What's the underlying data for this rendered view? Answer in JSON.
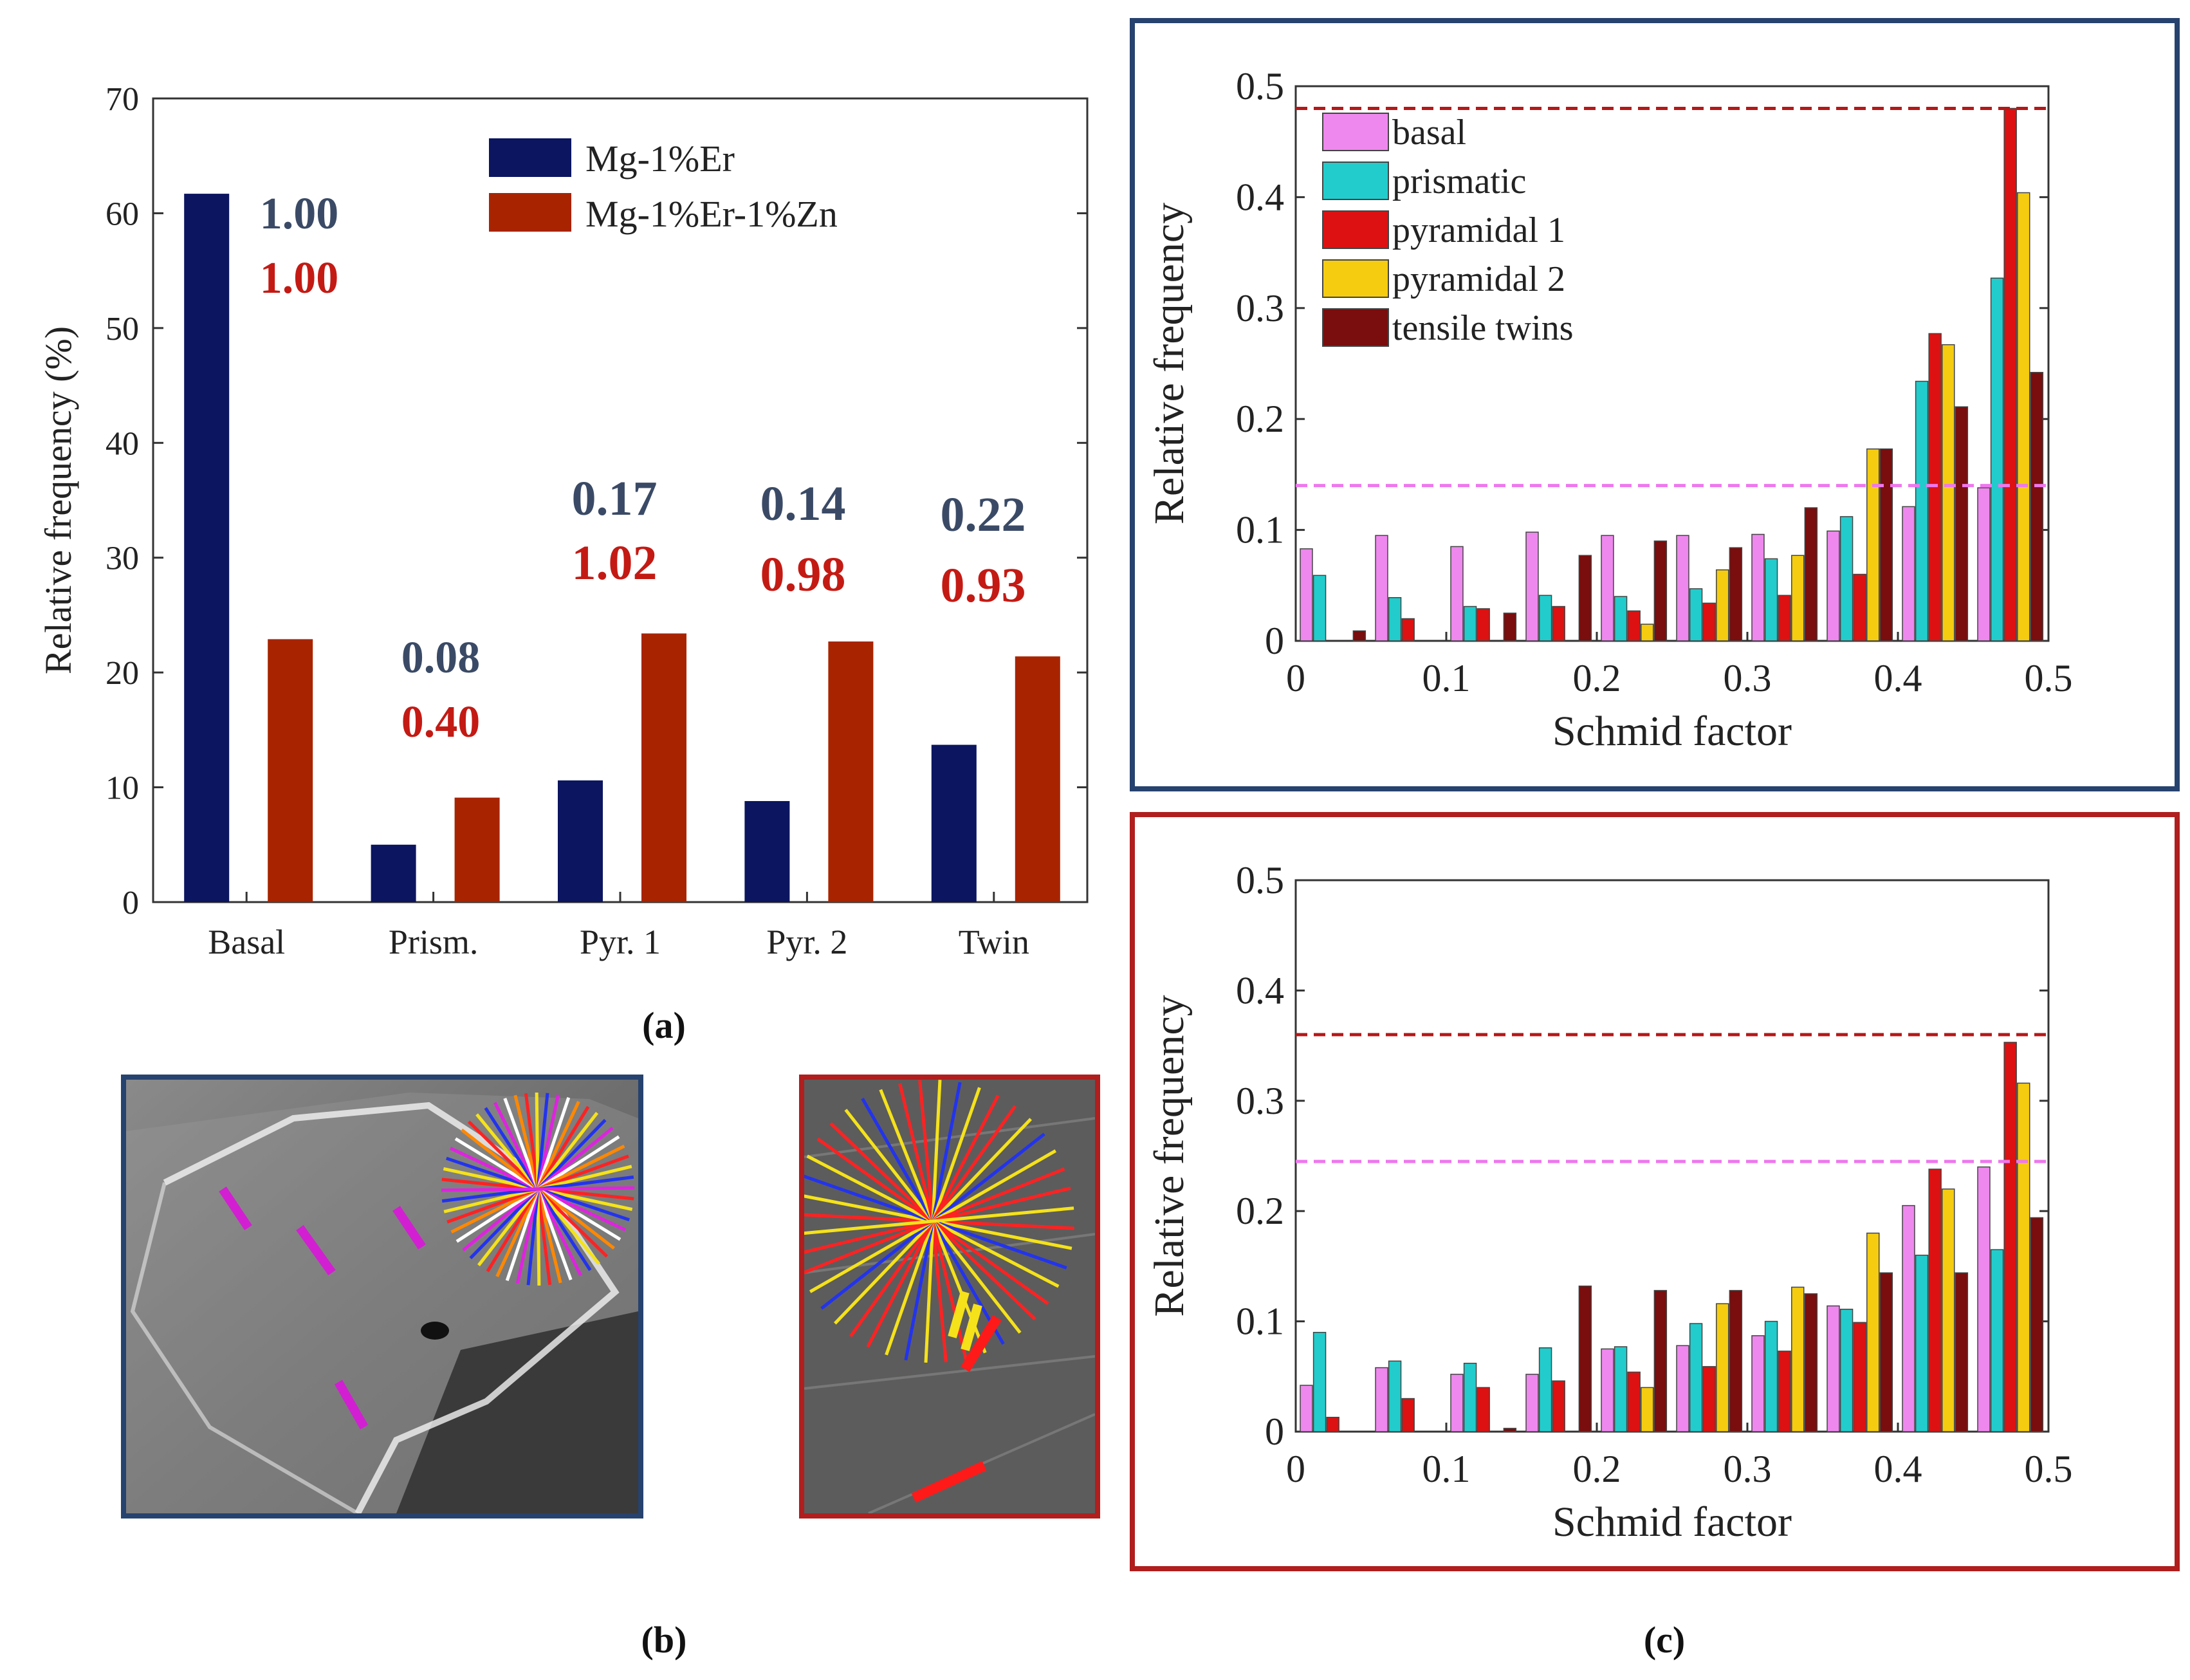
{
  "panel_labels": {
    "a": "(a)",
    "b": "(b)",
    "c": "(c)"
  },
  "colors": {
    "er": "#0b1560",
    "erzn": "#a82400",
    "ratio_er": "#3a4a66",
    "ratio_erzn": "#c41a14",
    "frame_top": "#26426e",
    "frame_bottom": "#b01e1e",
    "basal": "#ee88ee",
    "prismatic": "#22cccc",
    "pyramidal1": "#dd1111",
    "pyramidal2": "#f5cc10",
    "twins": "#7a0d0d"
  },
  "chart_data": [
    {
      "type": "bar",
      "ylabel": "Relative  frequency (%)",
      "ylim": [
        0,
        70
      ],
      "yticks": [
        "0",
        "10",
        "20",
        "30",
        "40",
        "50",
        "60",
        "70"
      ],
      "categories": [
        "Basal",
        "Prism.",
        "Pyr. 1",
        "Pyr. 2",
        "Twin"
      ],
      "series": [
        {
          "name": "Mg-1%Er",
          "values": [
            61.7,
            5.0,
            10.6,
            8.8,
            13.7
          ]
        },
        {
          "name": "Mg-1%Er-1%Zn",
          "values": [
            22.9,
            9.1,
            23.4,
            22.7,
            21.4
          ]
        }
      ],
      "annotations": [
        {
          "category": "Basal",
          "top": "1.00",
          "bottom": "1.00"
        },
        {
          "category": "Prism.",
          "top": "0.08",
          "bottom": "0.40"
        },
        {
          "category": "Pyr. 1",
          "top": "0.17",
          "bottom": "1.02"
        },
        {
          "category": "Pyr. 2",
          "top": "0.14",
          "bottom": "0.98"
        },
        {
          "category": "Twin",
          "top": "0.22",
          "bottom": "0.93"
        }
      ],
      "legend": "top-right"
    },
    {
      "type": "bar",
      "xlabel": "Schmid factor",
      "ylabel": "Relative frequency",
      "xlim": [
        0,
        0.5
      ],
      "ylim": [
        0,
        0.5
      ],
      "xticks": [
        "0",
        "0.1",
        "0.2",
        "0.3",
        "0.4",
        "0.5"
      ],
      "yticks": [
        "0",
        "0.1",
        "0.2",
        "0.3",
        "0.4",
        "0.5"
      ],
      "categories": [
        0.025,
        0.075,
        0.125,
        0.175,
        0.225,
        0.275,
        0.325,
        0.375,
        0.425,
        0.475
      ],
      "series": [
        {
          "name": "basal",
          "values": [
            0.083,
            0.095,
            0.085,
            0.098,
            0.095,
            0.095,
            0.096,
            0.099,
            0.121,
            0.138
          ]
        },
        {
          "name": "prismatic",
          "values": [
            0.059,
            0.039,
            0.031,
            0.041,
            0.04,
            0.047,
            0.074,
            0.112,
            0.234,
            0.327
          ]
        },
        {
          "name": "pyramidal 1",
          "values": [
            0.0,
            0.02,
            0.029,
            0.031,
            0.027,
            0.034,
            0.041,
            0.06,
            0.277,
            0.48
          ]
        },
        {
          "name": "pyramidal 2",
          "values": [
            0.0,
            0.0,
            0.0,
            0.0,
            0.015,
            0.064,
            0.077,
            0.173,
            0.267,
            0.404
          ]
        },
        {
          "name": "tensile twins",
          "values": [
            0.009,
            0.0,
            0.025,
            0.077,
            0.09,
            0.084,
            0.12,
            0.173,
            0.211,
            0.242
          ]
        }
      ],
      "reference_lines": [
        {
          "value": 0.48,
          "color": "#b51818"
        },
        {
          "value": 0.14,
          "color": "#ee77ee"
        }
      ],
      "legend": "top-left"
    },
    {
      "type": "bar",
      "xlabel": "Schmid factor",
      "ylabel": "Relative frequency",
      "xlim": [
        0,
        0.5
      ],
      "ylim": [
        0,
        0.5
      ],
      "xticks": [
        "0",
        "0.1",
        "0.2",
        "0.3",
        "0.4",
        "0.5"
      ],
      "yticks": [
        "0",
        "0.1",
        "0.2",
        "0.3",
        "0.4",
        "0.5"
      ],
      "categories": [
        0.025,
        0.075,
        0.125,
        0.175,
        0.225,
        0.275,
        0.325,
        0.375,
        0.425,
        0.475
      ],
      "series": [
        {
          "name": "basal",
          "values": [
            0.042,
            0.058,
            0.052,
            0.052,
            0.075,
            0.078,
            0.087,
            0.114,
            0.205,
            0.24
          ]
        },
        {
          "name": "prismatic",
          "values": [
            0.09,
            0.064,
            0.062,
            0.076,
            0.077,
            0.098,
            0.1,
            0.111,
            0.16,
            0.165
          ]
        },
        {
          "name": "pyramidal 1",
          "values": [
            0.013,
            0.03,
            0.04,
            0.046,
            0.054,
            0.059,
            0.073,
            0.099,
            0.238,
            0.353
          ]
        },
        {
          "name": "pyramidal 2",
          "values": [
            0.0,
            0.0,
            0.0,
            0.0,
            0.04,
            0.116,
            0.131,
            0.18,
            0.22,
            0.316
          ]
        },
        {
          "name": "tensile twins",
          "values": [
            0.0,
            0.0,
            0.003,
            0.132,
            0.128,
            0.128,
            0.125,
            0.144,
            0.144,
            0.194
          ]
        }
      ],
      "reference_lines": [
        {
          "value": 0.36,
          "color": "#b51818"
        },
        {
          "value": 0.245,
          "color": "#ee77ee"
        }
      ]
    }
  ]
}
